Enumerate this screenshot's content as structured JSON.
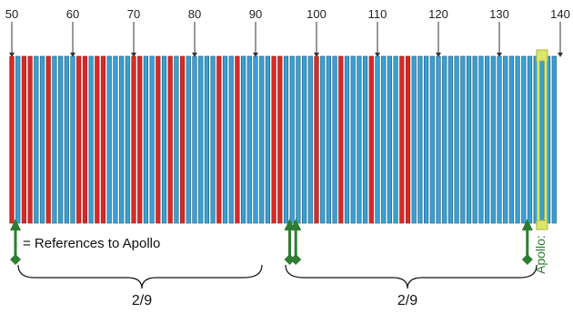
{
  "diagram": {
    "tick_labels": [
      "50",
      "60",
      "70",
      "80",
      "90",
      "100",
      "110",
      "120",
      "130",
      "140"
    ],
    "tick_values": [
      50,
      60,
      70,
      80,
      90,
      100,
      110,
      120,
      130,
      140
    ],
    "bar_start": 50,
    "bar_end": 139,
    "red_bars": [
      50,
      52,
      53,
      56,
      61,
      62,
      64,
      65,
      70,
      71,
      74,
      76,
      78,
      84,
      87,
      93,
      94,
      100,
      104,
      109,
      114,
      115
    ],
    "highlighted_bar": 137,
    "legend_text": "= References to Apollo",
    "fraction_labels": [
      "2/9",
      "2/9"
    ],
    "apollo_label": "Apollo:",
    "reference_arrows": [
      50,
      95,
      96,
      134
    ],
    "colors": {
      "red": "#d62b28",
      "blue": "#3c9fcf",
      "bar_stroke": "#1c5f86",
      "tick_line": "#333333",
      "arrow_green": "#2e7d32",
      "highlight_fill": "#d9e86a",
      "highlight_stroke": "#b7b33a"
    }
  }
}
